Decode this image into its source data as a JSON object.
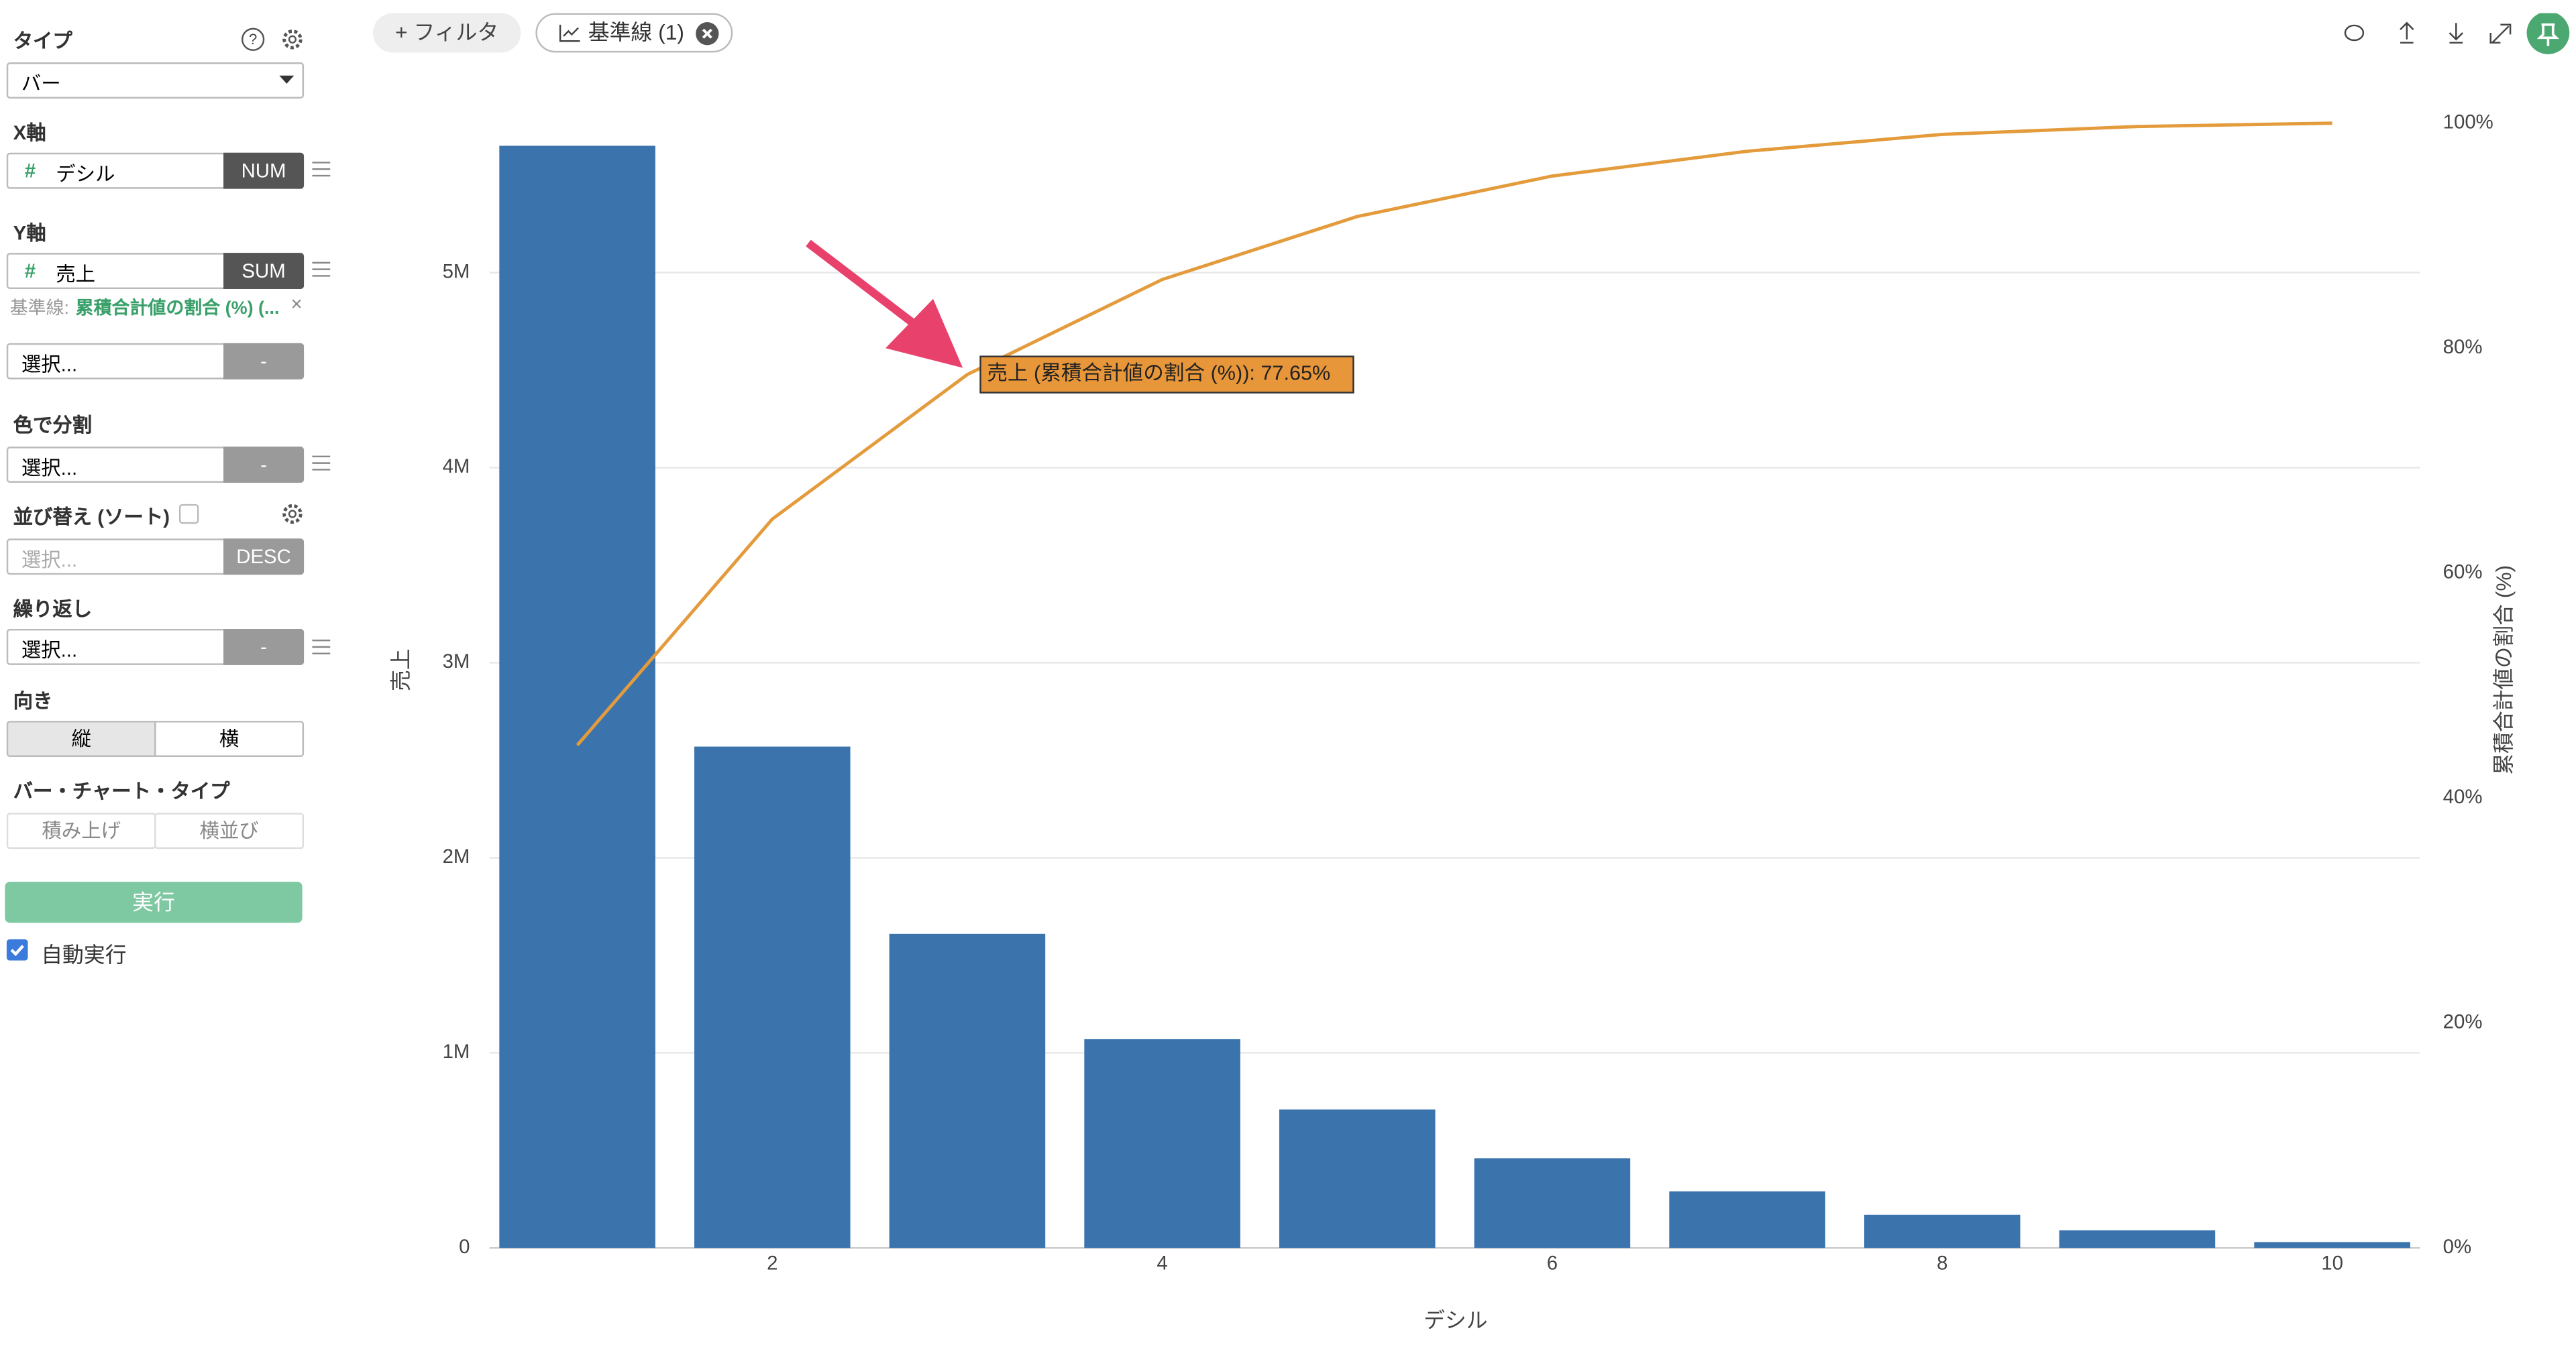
{
  "toolbar": {
    "filter": "+ フィルタ",
    "reference": "基準線 (1)"
  },
  "panel": {
    "type_label": "タイプ",
    "type_value": "バー",
    "x_label": "X軸",
    "x_hash": "#",
    "x_field": "デシル",
    "x_agg": "NUM",
    "y_label": "Y軸",
    "y_hash": "#",
    "y_field": "売上",
    "y_agg": "SUM",
    "ref_prefix": "基準線:",
    "ref_value": "累積合計値の割合 (%) (...",
    "ref_close": "×",
    "y2_select": "選択...",
    "y2_agg": "-",
    "color_label": "色で分割",
    "color_select": "選択...",
    "color_agg": "-",
    "sort_label": "並び替え (ソート)",
    "sort_select": "選択...",
    "sort_order": "DESC",
    "repeat_label": "繰り返し",
    "repeat_select": "選択...",
    "repeat_agg": "-",
    "direction_label": "向き",
    "direction_vertical": "縦",
    "direction_horizontal": "横",
    "bar_type_label": "バー・チャート・タイプ",
    "bar_type_stack": "積み上げ",
    "bar_type_side": "横並び",
    "run": "実行",
    "auto_run": "自動実行"
  },
  "chart_data": {
    "type": "bar",
    "x_label": "デシル",
    "y_label": "売上",
    "y2_label": "累積合計値の割合 (%)",
    "annotation": "売上 (累積合計値の割合 (%)): 77.65%",
    "x": [
      1,
      2,
      3,
      4,
      5,
      6,
      7,
      8,
      9,
      10
    ],
    "series": [
      {
        "type": "bar",
        "color": "#3b73ad",
        "values": [
          5650000,
          2570000,
          1610000,
          1070000,
          710000,
          460000,
          290000,
          170000,
          90000,
          30000
        ]
      },
      {
        "type": "line",
        "axis": "y2",
        "color": "#e39b3c",
        "values": [
          44.7,
          64.8,
          77.65,
          86.1,
          91.7,
          95.3,
          97.5,
          99.0,
          99.7,
          100
        ]
      }
    ],
    "xlim": [
      0.55,
      10.45
    ],
    "xticks": [
      2,
      4,
      6,
      8,
      10
    ],
    "ylim": [
      0,
      5766000
    ],
    "yticks": [
      0,
      {
        "value": 1000000,
        "label": "1M"
      },
      {
        "value": 2000000,
        "label": "2M"
      },
      {
        "value": 3000000,
        "label": "3M"
      },
      {
        "value": 4000000,
        "label": "4M"
      },
      {
        "value": 5000000,
        "label": "5M"
      }
    ],
    "y2lim": [
      0,
      100
    ],
    "y2ticks": [
      {
        "value": 0,
        "label": "0%"
      },
      {
        "value": 20,
        "label": "20%"
      },
      {
        "value": 40,
        "label": "40%"
      },
      {
        "value": 60,
        "label": "60%"
      },
      {
        "value": 80,
        "label": "80%"
      },
      {
        "value": 100,
        "label": "100%"
      }
    ],
    "grid": true
  }
}
